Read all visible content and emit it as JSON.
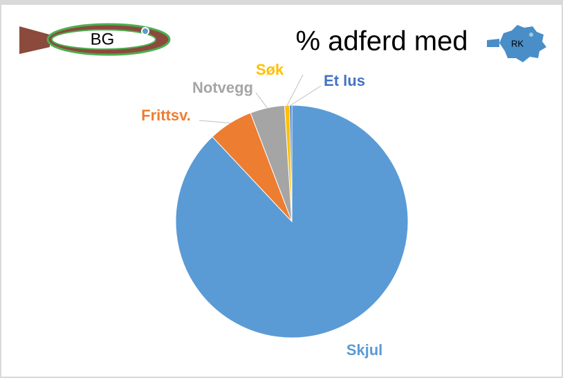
{
  "chart_data": {
    "type": "pie",
    "title": "% adferd med",
    "badges": [
      "BG",
      "RK"
    ],
    "categories": [
      "Skjul",
      "Frittsv.",
      "Notvegg",
      "Søk",
      "Et lus"
    ],
    "values": [
      88,
      6.2,
      4.8,
      0.7,
      0.3
    ],
    "colors": [
      "#5b9bd5",
      "#ed7d31",
      "#a5a5a5",
      "#ffc000",
      "#4472c4"
    ]
  }
}
